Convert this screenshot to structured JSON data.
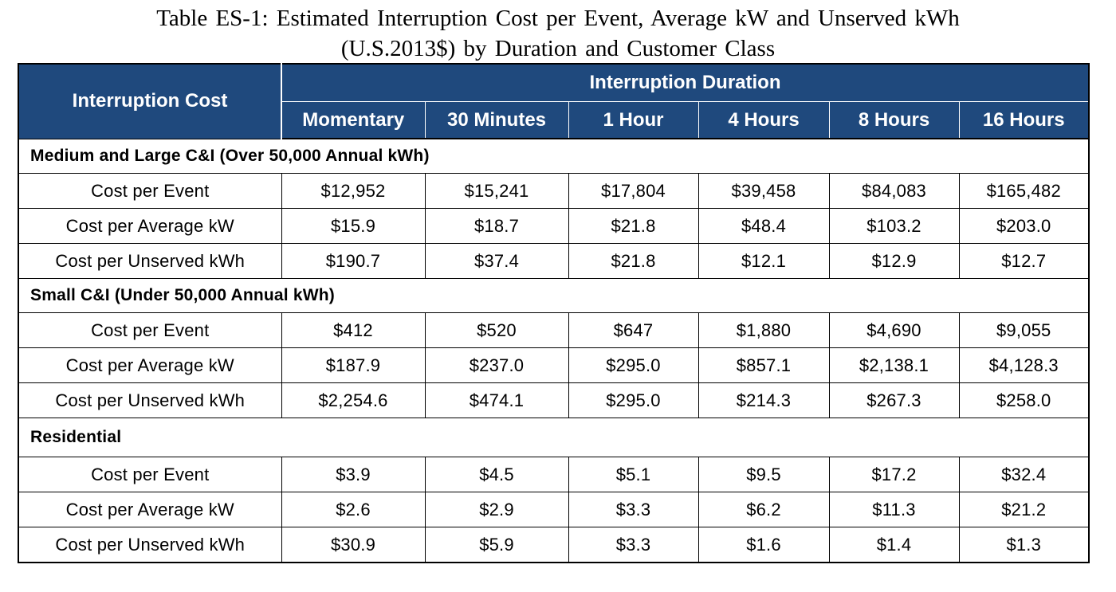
{
  "caption": {
    "line1": "Table ES-1: Estimated  Interruption  Cost per Event,  Average  kW and Unserved  kWh",
    "line2": "(U.S.2013$) by Duration  and Customer  Class"
  },
  "header": {
    "corner": "Interruption Cost",
    "group": "Interruption Duration",
    "durations": [
      "Momentary",
      "30 Minutes",
      "1 Hour",
      "4 Hours",
      "8 Hours",
      "16 Hours"
    ]
  },
  "sections": [
    {
      "title": "Medium and Large C&I (Over 50,000 Annual kWh)",
      "rows": [
        {
          "label": "Cost per Event",
          "values": [
            "$12,952",
            "$15,241",
            "$17,804",
            "$39,458",
            "$84,083",
            "$165,482"
          ]
        },
        {
          "label": "Cost per Average kW",
          "values": [
            "$15.9",
            "$18.7",
            "$21.8",
            "$48.4",
            "$103.2",
            "$203.0"
          ]
        },
        {
          "label": "Cost per Unserved kWh",
          "values": [
            "$190.7",
            "$37.4",
            "$21.8",
            "$12.1",
            "$12.9",
            "$12.7"
          ]
        }
      ]
    },
    {
      "title": "Small C&I (Under 50,000 Annual kWh)",
      "rows": [
        {
          "label": "Cost per Event",
          "values": [
            "$412",
            "$520",
            "$647",
            "$1,880",
            "$4,690",
            "$9,055"
          ]
        },
        {
          "label": "Cost per Average kW",
          "values": [
            "$187.9",
            "$237.0",
            "$295.0",
            "$857.1",
            "$2,138.1",
            "$4,128.3"
          ]
        },
        {
          "label": "Cost per Unserved kWh",
          "values": [
            "$2,254.6",
            "$474.1",
            "$295.0",
            "$214.3",
            "$267.3",
            "$258.0"
          ]
        }
      ]
    },
    {
      "title": "Residential",
      "rows": [
        {
          "label": "Cost per Event",
          "values": [
            "$3.9",
            "$4.5",
            "$5.1",
            "$9.5",
            "$17.2",
            "$32.4"
          ]
        },
        {
          "label": "Cost per Average kW",
          "values": [
            "$2.6",
            "$2.9",
            "$3.3",
            "$6.2",
            "$11.3",
            "$21.2"
          ]
        },
        {
          "label": "Cost per Unserved kWh",
          "values": [
            "$30.9",
            "$5.9",
            "$3.3",
            "$1.6",
            "$1.4",
            "$1.3"
          ]
        }
      ]
    }
  ]
}
